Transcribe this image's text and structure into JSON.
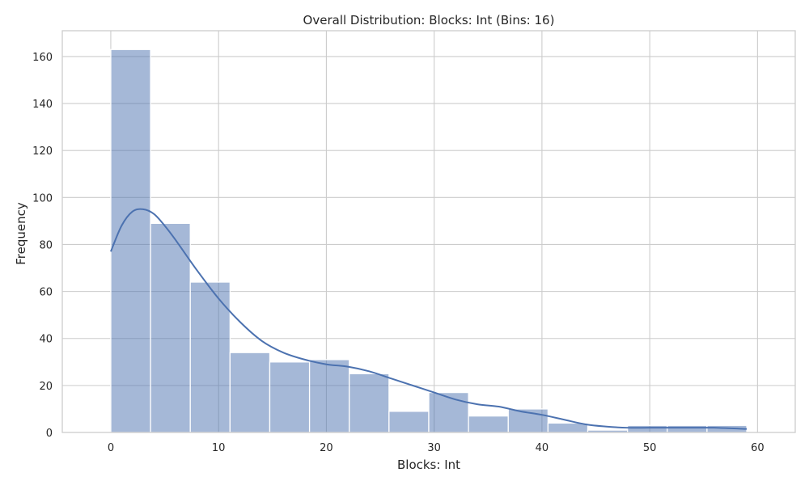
{
  "chart_data": {
    "type": "bar",
    "title": "Overall Distribution: Blocks: Int (Bins: 16)",
    "xlabel": "Blocks: Int",
    "ylabel": "Frequency",
    "xlim": [
      -4.5,
      63.5
    ],
    "ylim": [
      0,
      171
    ],
    "xticks": [
      0,
      10,
      20,
      30,
      40,
      50,
      60
    ],
    "yticks": [
      0,
      20,
      40,
      60,
      80,
      100,
      120,
      140,
      160
    ],
    "bin_edges": [
      0,
      3.6875,
      7.375,
      11.0625,
      14.75,
      18.4375,
      22.125,
      25.8125,
      29.5,
      33.1875,
      36.875,
      40.5625,
      44.25,
      47.9375,
      51.625,
      55.3125,
      59
    ],
    "values": [
      163,
      89,
      64,
      34,
      30,
      31,
      25,
      9,
      17,
      7,
      10,
      4,
      1,
      3,
      3,
      3
    ],
    "kde": {
      "x": [
        0,
        1,
        2,
        3,
        4,
        5,
        6,
        8,
        10,
        12,
        14,
        16,
        18,
        20,
        22,
        24,
        26,
        28,
        30,
        32,
        34,
        36,
        38,
        40,
        42,
        44,
        46,
        48,
        50,
        52,
        54,
        56,
        59
      ],
      "y": [
        77,
        88,
        94,
        95,
        93,
        88,
        82,
        69,
        57,
        47,
        39,
        34,
        31,
        29,
        28,
        26,
        23,
        20,
        17,
        14,
        12,
        11,
        9,
        7.5,
        5.5,
        3.5,
        2.5,
        2,
        2,
        2,
        2,
        2,
        1.5
      ]
    },
    "grid": true,
    "colors": {
      "bar": "#4c72b0",
      "grid": "#cccccc",
      "text": "#262626"
    }
  }
}
